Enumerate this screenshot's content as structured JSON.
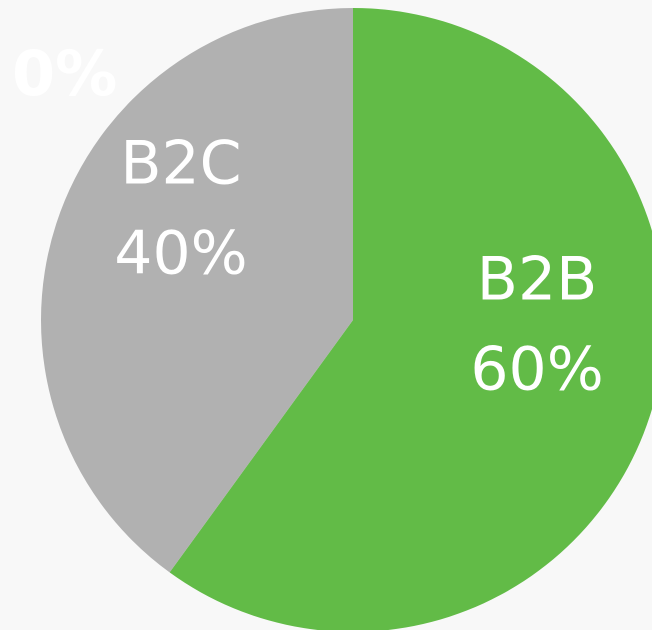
{
  "chart_data": {
    "type": "pie",
    "annotation": "0%",
    "categories": [
      "B2B",
      "B2C"
    ],
    "values": [
      60,
      40
    ],
    "value_labels": [
      "60%",
      "40%"
    ],
    "colors": [
      "#62bb47",
      "#b1b1b1"
    ]
  }
}
